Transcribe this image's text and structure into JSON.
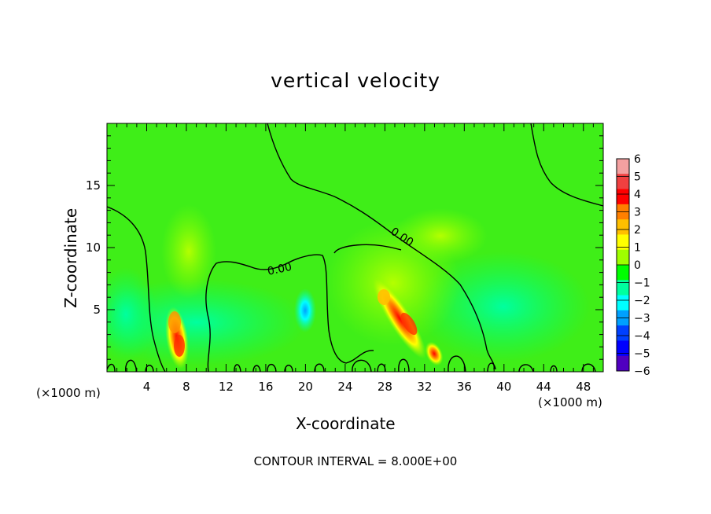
{
  "chart_data": {
    "type": "heatmap",
    "title": "vertical velocity",
    "xlabel": "X-coordinate",
    "ylabel": "Z-coordinate",
    "x_unit": "(×1000 m)",
    "xlim": [
      0,
      50
    ],
    "ylim": [
      0,
      20
    ],
    "x_ticks": [
      4,
      8,
      12,
      16,
      20,
      24,
      28,
      32,
      36,
      40,
      44,
      48
    ],
    "y_ticks": [
      5,
      10,
      15
    ],
    "colorbar_ticks": [
      6,
      5,
      4,
      3,
      2,
      1,
      0,
      -1,
      -2,
      -3,
      -4,
      -5,
      -6
    ],
    "colorbar_colors": [
      "#f4a0a0",
      "#f04040",
      "#ff0000",
      "#ff7f00",
      "#ffbf00",
      "#ffff00",
      "#9fff00",
      "#00ff00",
      "#00ff9f",
      "#00ffff",
      "#00a0ff",
      "#0040ff",
      "#0000ff",
      "#5000c0"
    ],
    "contour_label": "0.00",
    "footer": "CONTOUR INTERVAL = 8.000E+00",
    "features": [
      {
        "name": "updraft",
        "x": 7.3,
        "z": 3.0,
        "value": 4.5
      },
      {
        "name": "updraft",
        "x": 30.5,
        "z": 4.5,
        "value": 5.0
      },
      {
        "name": "updraft",
        "x": 33.5,
        "z": 1.5,
        "value": 3.0
      },
      {
        "name": "downdraft",
        "x": 20.0,
        "z": 4.8,
        "value": -3.0
      }
    ]
  }
}
